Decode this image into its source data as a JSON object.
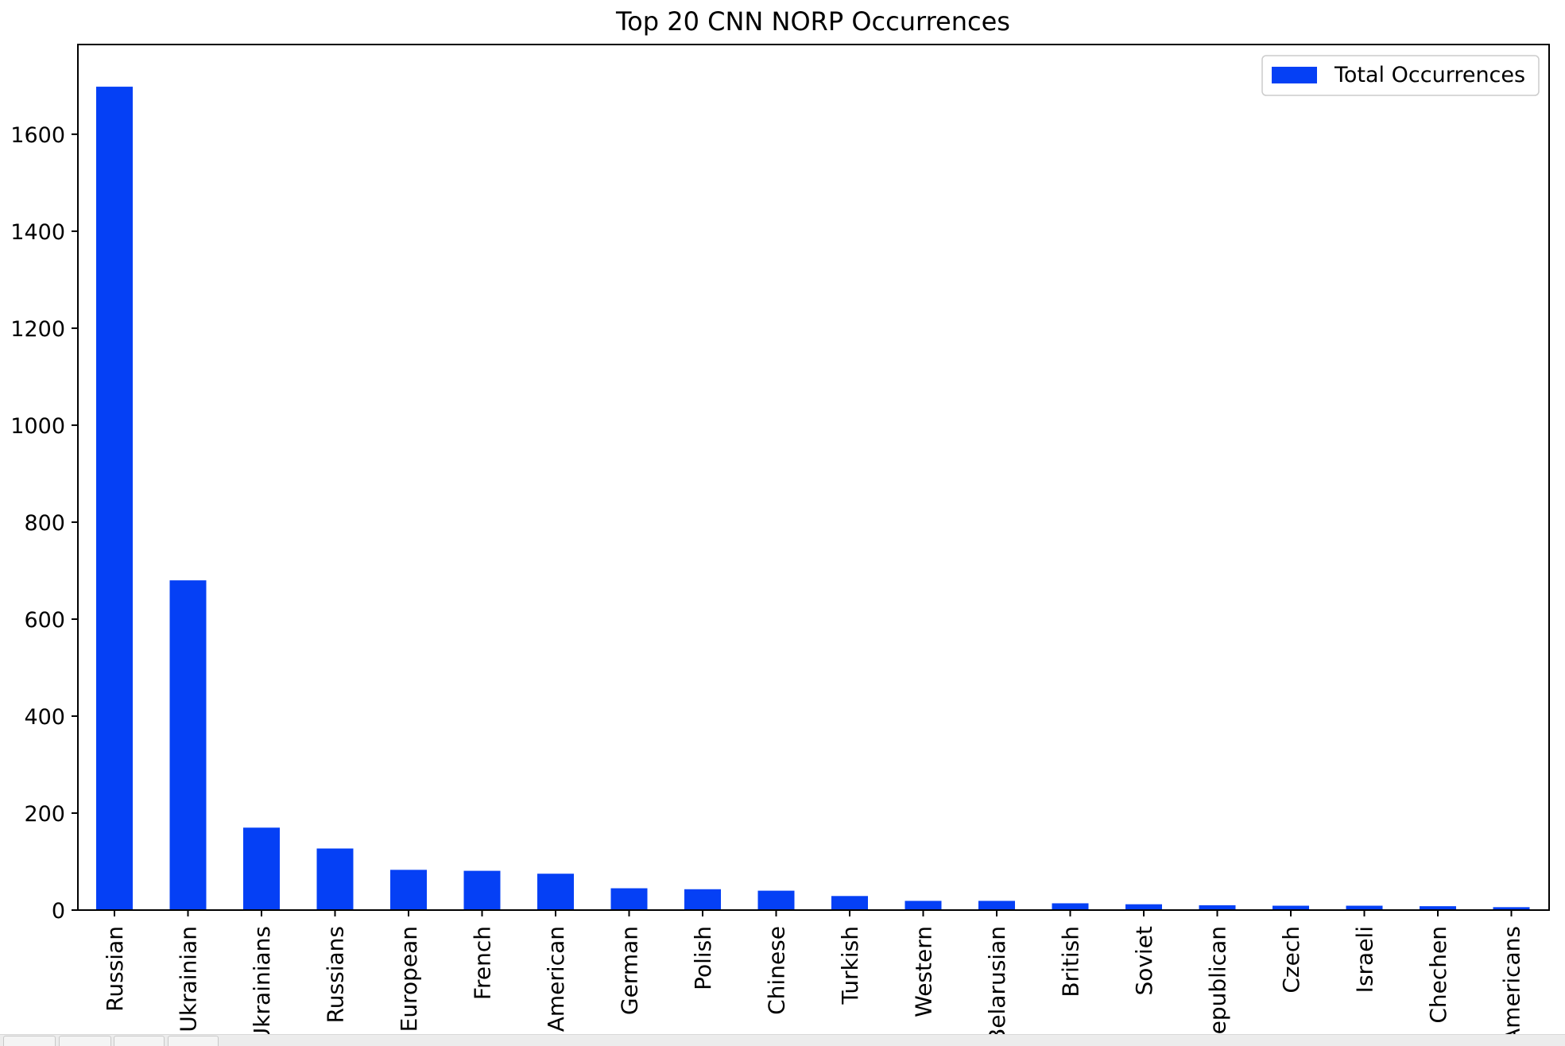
{
  "chart_data": {
    "type": "bar",
    "title": "Top 20 CNN NORP Occurrences",
    "xlabel": "",
    "ylabel": "",
    "ylim": [
      0,
      1785
    ],
    "yticks": [
      0,
      200,
      400,
      600,
      800,
      1000,
      1200,
      1400,
      1600
    ],
    "categories": [
      "Russian",
      "Ukrainian",
      "Ukrainians",
      "Russians",
      "European",
      "French",
      "American",
      "German",
      "Polish",
      "Chinese",
      "Turkish",
      "Western",
      "Belarusian",
      "British",
      "Soviet",
      "Republican",
      "Czech",
      "Israeli",
      "Chechen",
      "Americans"
    ],
    "series": [
      {
        "name": "Total Occurrences",
        "color": "#0540f5",
        "values": [
          1698,
          680,
          170,
          127,
          83,
          81,
          75,
          45,
          43,
          40,
          29,
          19,
          19,
          14,
          12,
          10,
          9,
          9,
          8,
          6
        ]
      }
    ],
    "legend": "top-right",
    "grid": false
  }
}
